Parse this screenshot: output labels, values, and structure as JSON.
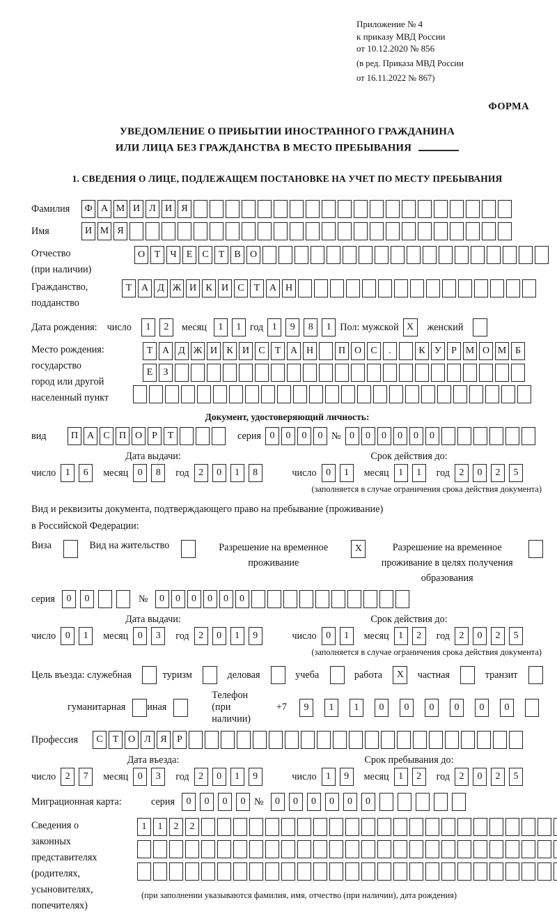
{
  "colors": {
    "ink": "#141414",
    "box_border": "#242424",
    "background": "#ffffff"
  },
  "header": {
    "appendix": [
      "Приложение № 4",
      "к приказу МВД России",
      "от 10.12.2020 № 856"
    ],
    "amendment": [
      "(в ред. Приказа МВД России",
      "от 16.11.2022 № 867)"
    ],
    "forma": "ФОРМА"
  },
  "title": {
    "line1": "УВЕДОМЛЕНИЕ О ПРИБЫТИИ ИНОСТРАННОГО ГРАЖДАНИНА",
    "line2": "ИЛИ ЛИЦА БЕЗ ГРАЖДАНСТВА В МЕСТО ПРЕБЫВАНИЯ",
    "section1": "1. СВЕДЕНИЯ О ЛИЦЕ, ПОДЛЕЖАЩЕМ ПОСТАНОВКЕ НА УЧЕТ ПО МЕСТУ ПРЕБЫВАНИЯ"
  },
  "date_labels": {
    "d": "число",
    "m": "месяц",
    "y": "год"
  },
  "person": {
    "surname": {
      "label": "Фамилия",
      "count": 27,
      "chars": "ФАМИЛИЯ"
    },
    "name": {
      "label": "Имя",
      "count": 27,
      "chars": "ИМЯ"
    },
    "patronymic": {
      "label1": "Отчество",
      "label2": "(при наличии)",
      "count": 26,
      "chars": "ОТЧЕСТВО"
    },
    "citizenship": {
      "label1": "Гражданство,",
      "label2": "подданство",
      "count": 26,
      "chars": "ТАДЖИКИСТАН"
    },
    "birth": {
      "label": "Дата рождения:",
      "day": {
        "count": 2,
        "chars": "12"
      },
      "month": {
        "count": 2,
        "chars": "11"
      },
      "year": {
        "count": 4,
        "chars": "1981"
      }
    },
    "sex": {
      "label": "Пол: мужской",
      "male": "X",
      "female_label": "женский",
      "female": ""
    },
    "birth_place": {
      "label1": "Место рождения:",
      "label2": "государство",
      "label3": "город или другой",
      "label4": "населенный пункт",
      "row1": {
        "count": 24,
        "chars": "ТАДЖИКИСТАН ПОС. КУРМОМБ"
      },
      "row2": {
        "count": 24,
        "chars": "ЕЗ"
      },
      "row3": {
        "count": 25,
        "chars": ""
      }
    }
  },
  "identity_doc": {
    "header": "Документ, удостоверяющий личность:",
    "kind_label": "вид",
    "kind": {
      "count": 10,
      "chars": "ПАСПОРТ"
    },
    "series_label": "серия",
    "series": {
      "count": 4,
      "chars": "0000"
    },
    "number_label": "№",
    "number": {
      "count": 12,
      "chars": "000000"
    },
    "issue_label": "Дата выдачи:",
    "issue": {
      "day": {
        "count": 2,
        "chars": "16"
      },
      "month": {
        "count": 2,
        "chars": "08"
      },
      "year": {
        "count": 4,
        "chars": "2018"
      }
    },
    "valid_label": "Срок действия до:",
    "valid": {
      "day": {
        "count": 2,
        "chars": "01"
      },
      "month": {
        "count": 2,
        "chars": "11"
      },
      "year": {
        "count": 4,
        "chars": "2025"
      }
    },
    "note": "(заполняется в случае ограничения срока действия документа)"
  },
  "residence_doc": {
    "intro1": "Вид и реквизиты документа, подтверждающего право на пребывание (проживание)",
    "intro2": "в Российской Федерации:",
    "options": [
      {
        "label": "Виза",
        "value": ""
      },
      {
        "label": "Вид на жительство",
        "value": ""
      },
      {
        "label": "Разрешение на временное проживание",
        "value": "X"
      },
      {
        "label": "Разрешение на временное проживание в целях получения образования",
        "value": ""
      }
    ],
    "series_label": "серия",
    "series": {
      "count": 4,
      "chars": "00"
    },
    "number_label": "№",
    "number": {
      "count": 16,
      "chars": "000000"
    },
    "issue_label": "Дата выдачи:",
    "issue": {
      "day": {
        "count": 2,
        "chars": "01"
      },
      "month": {
        "count": 2,
        "chars": "03"
      },
      "year": {
        "count": 4,
        "chars": "2019"
      }
    },
    "valid_label": "Срок действия до:",
    "valid": {
      "day": {
        "count": 2,
        "chars": "01"
      },
      "month": {
        "count": 2,
        "chars": "12"
      },
      "year": {
        "count": 4,
        "chars": "2025"
      }
    },
    "note": "(заполняется в случае ограничения срока действия документа)"
  },
  "visit": {
    "purpose_label": "Цель въезда: служебная",
    "purposes": [
      {
        "label": "туризм",
        "value": ""
      },
      {
        "label": "деловая",
        "value": ""
      },
      {
        "label": "учеба",
        "value": ""
      },
      {
        "label": "работа",
        "value": "X"
      },
      {
        "label": "частная",
        "value": ""
      },
      {
        "label": "транзит",
        "value": ""
      }
    ],
    "purpose_first_value": "",
    "purposes2": [
      {
        "label": "гуманитарная",
        "value": ""
      },
      {
        "label": "иная",
        "value": ""
      }
    ],
    "phone_label": "Телефон (при наличии)",
    "phone_prefix": "+7",
    "phone": {
      "count": 10,
      "chars": "911000000"
    },
    "profession_label": "Профессия",
    "profession": {
      "count": 27,
      "chars": "СТОЛЯР"
    },
    "entry_label": "Дата въезда:",
    "entry": {
      "day": {
        "count": 2,
        "chars": "27"
      },
      "month": {
        "count": 2,
        "chars": "03"
      },
      "year": {
        "count": 4,
        "chars": "2019"
      }
    },
    "stay_label": "Срок пребывания до:",
    "stay": {
      "day": {
        "count": 2,
        "chars": "19"
      },
      "month": {
        "count": 2,
        "chars": "12"
      },
      "year": {
        "count": 4,
        "chars": "2025"
      }
    },
    "migration_label": "Миграционная карта:",
    "mig_series_label": "серия",
    "mig_series": {
      "count": 4,
      "chars": "0000"
    },
    "mig_number_label": "№",
    "mig_number": {
      "count": 11,
      "chars": "000000"
    }
  },
  "representatives": {
    "label_lines": [
      "Сведения о",
      "законных",
      "представителях",
      "(родителях,",
      "усыновителях,",
      "попечителях)"
    ],
    "row1": {
      "count": 27,
      "chars": "1122"
    },
    "row2": {
      "count": 27,
      "chars": ""
    },
    "row3": {
      "count": 27,
      "chars": ""
    },
    "note": "(при заполнении указываются фамилия, имя, отчество (при наличии), дата рождения)"
  }
}
